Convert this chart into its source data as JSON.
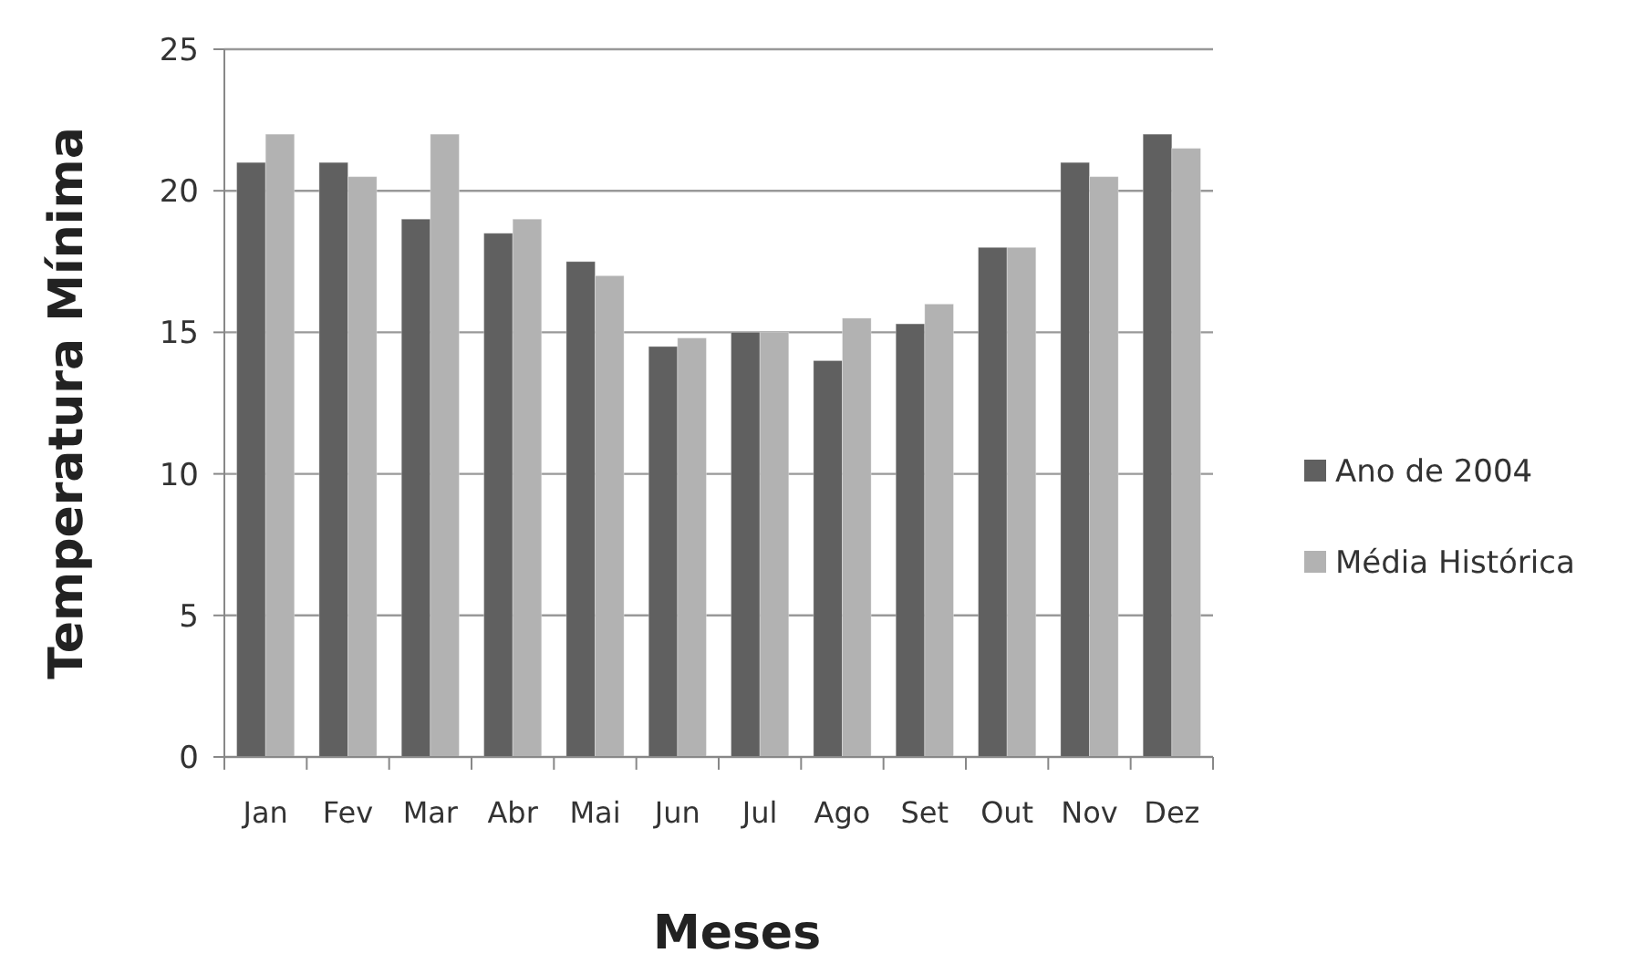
{
  "chart_data": {
    "type": "bar",
    "xlabel": "Meses",
    "ylabel": "Temperatura Mínima",
    "categories": [
      "Jan",
      "Fev",
      "Mar",
      "Abr",
      "Mai",
      "Jun",
      "Jul",
      "Ago",
      "Set",
      "Out",
      "Nov",
      "Dez"
    ],
    "series": [
      {
        "name": "Ano de 2004",
        "color": "#606060",
        "values": [
          21,
          21,
          19,
          18.5,
          17.5,
          14.5,
          15,
          14,
          15.3,
          18,
          21,
          22
        ]
      },
      {
        "name": "Média Histórica",
        "color": "#b2b2b2",
        "values": [
          22,
          20.5,
          22,
          19,
          17,
          14.8,
          15,
          15.5,
          16,
          18,
          20.5,
          21.5
        ]
      }
    ],
    "ylim": [
      0,
      25
    ],
    "yticks": [
      0,
      5,
      10,
      15,
      20,
      25
    ],
    "grid": "y",
    "legend": "right"
  }
}
